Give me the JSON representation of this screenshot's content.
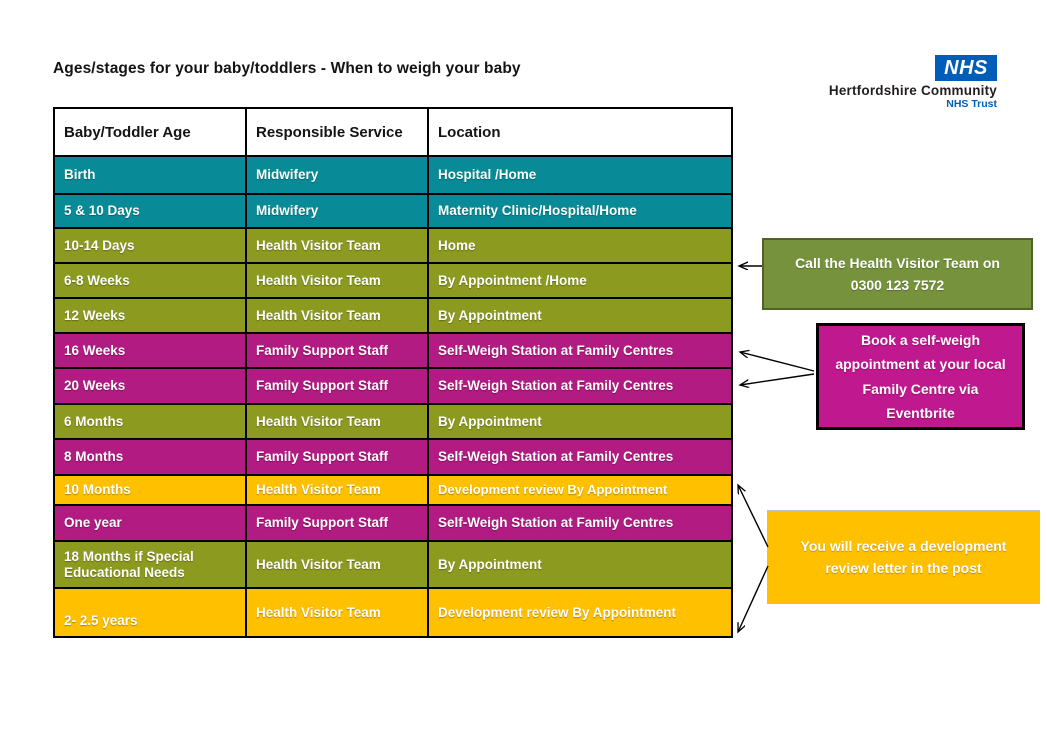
{
  "title": "Ages/stages for your baby/toddlers - When to weigh your baby",
  "logo": {
    "nhs": "NHS",
    "org": "Hertfordshire Community",
    "trust": "NHS Trust",
    "brand_blue": "#005EB8"
  },
  "table": {
    "headers": [
      "Baby/Toddler Age",
      "Responsible Service",
      "Location"
    ],
    "rows": [
      {
        "age": "Birth",
        "service": "Midwifery",
        "location": "Hospital /Home",
        "color": "teal"
      },
      {
        "age": "5 & 10 Days",
        "service": "Midwifery",
        "location": "Maternity Clinic/Hospital/Home",
        "color": "teal"
      },
      {
        "age": "10-14 Days",
        "service": "Health Visitor Team",
        "location": "Home",
        "color": "olive"
      },
      {
        "age": "6-8 Weeks",
        "service": "Health Visitor Team",
        "location": "By Appointment /Home",
        "color": "olive"
      },
      {
        "age": "12 Weeks",
        "service": "Health Visitor Team",
        "location": "By Appointment",
        "color": "olive"
      },
      {
        "age": "16 Weeks",
        "service": "Family Support Staff",
        "location": "Self-Weigh Station at Family Centres",
        "color": "magenta"
      },
      {
        "age": "20 Weeks",
        "service": "Family Support Staff",
        "location": "Self-Weigh Station at Family Centres",
        "color": "magenta"
      },
      {
        "age": "6 Months",
        "service": "Health Visitor Team",
        "location": "By Appointment",
        "color": "olive"
      },
      {
        "age": "8 Months",
        "service": "Family Support Staff",
        "location": "Self-Weigh Station at Family Centres",
        "color": "magenta"
      },
      {
        "age": "10 Months",
        "service": "Health Visitor Team",
        "location": "Development review By Appointment",
        "color": "yellow"
      },
      {
        "age": "One year",
        "service": "Family Support Staff",
        "location": "Self-Weigh Station at Family Centres",
        "color": "magenta"
      },
      {
        "age": "18 Months if Special Educational Needs",
        "service": "Health Visitor Team",
        "location": "By Appointment",
        "color": "olive"
      },
      {
        "age": "2- 2.5 years",
        "service": "Health Visitor Team",
        "location": "Development review By Appointment",
        "color": "yellow"
      }
    ]
  },
  "callouts": [
    {
      "text": "Call the Health Visitor Team on 0300 123 7572",
      "color": "green"
    },
    {
      "text": "Book a self-weigh appointment at your local Family Centre via Eventbrite",
      "color": "magenta"
    },
    {
      "text": "You will receive a development review letter in the post",
      "color": "yellow"
    }
  ],
  "colors": {
    "row_teal": "#088B96",
    "row_olive": "#8C9A20",
    "row_magenta": "#B21B82",
    "row_yellow": "#FFC000",
    "callout_green": "#76923C",
    "callout_green_border": "#4F6228",
    "callout_magenta": "#C0188E",
    "callout_yellow": "#FFC000",
    "nhs_blue": "#005EB8"
  }
}
